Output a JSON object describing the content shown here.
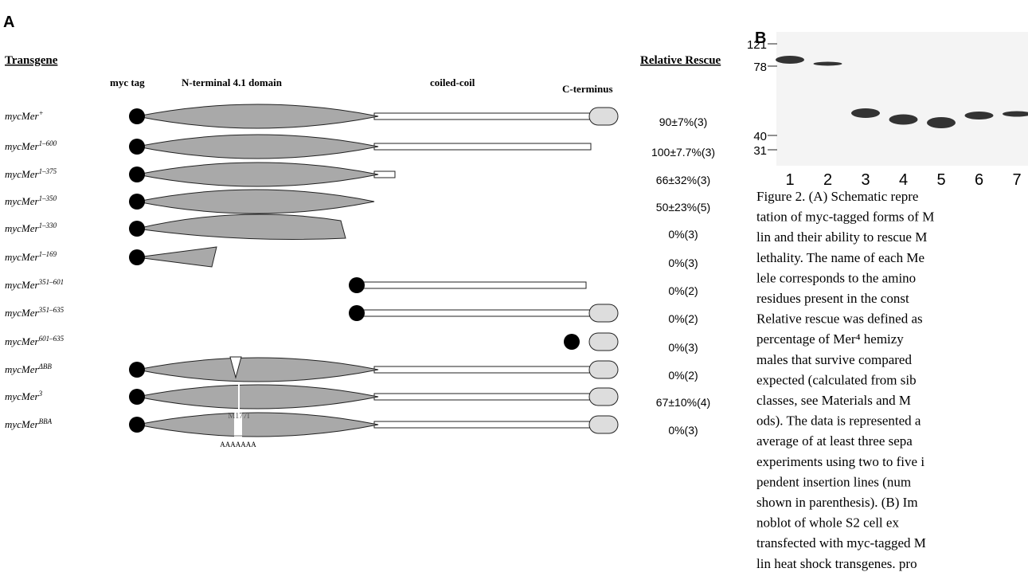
{
  "panel_a": {
    "label": "A",
    "header_transgene": "Transgene",
    "header_rescue": "Relative Rescue",
    "columns": [
      "myc tag",
      "N-terminal 4.1 domain",
      "coiled-coil",
      "C-terminus"
    ],
    "rows": [
      {
        "name": "mycMer",
        "sup": "+",
        "rescue": "90±7%(3)"
      },
      {
        "name": "mycMer",
        "sup": "1–600",
        "rescue": "100±7.7%(3)"
      },
      {
        "name": "mycMer",
        "sup": "1–375",
        "rescue": "66±32%(3)"
      },
      {
        "name": "mycMer",
        "sup": "1–350",
        "rescue": "50±23%(5)"
      },
      {
        "name": "mycMer",
        "sup": "1–330",
        "rescue": "0%(3)"
      },
      {
        "name": "mycMer",
        "sup": "1–169",
        "rescue": "0%(3)"
      },
      {
        "name": "mycMer",
        "sup": "351–601",
        "rescue": "0%(2)"
      },
      {
        "name": "mycMer",
        "sup": "351–635",
        "rescue": "0%(2)"
      },
      {
        "name": "mycMer",
        "sup": "601–635",
        "rescue": "0%(3)"
      },
      {
        "name": "mycMer",
        "sup": "ΔBB",
        "rescue": "0%(2)"
      },
      {
        "name": "mycMer",
        "sup": "3",
        "rescue": "67±10%(4)"
      },
      {
        "name": "mycMer",
        "sup": "BBA",
        "rescue": "0%(3)"
      }
    ],
    "annotations": [
      "M177I",
      "AAAAAAA"
    ]
  },
  "panel_b": {
    "label": "B",
    "markers": [
      "121",
      "78",
      "40",
      "31"
    ],
    "lanes": [
      "1",
      "2",
      "3",
      "4",
      "5",
      "6",
      "7"
    ]
  },
  "caption": [
    "Figure 2. (A) Schematic repre",
    "tation of myc-tagged forms of M",
    "lin and their ability to rescue M",
    "lethality. The name of each Me",
    "lele corresponds to the amino",
    "residues present in the const",
    "Relative rescue was defined as",
    "percentage of Mer⁴ hemizy",
    "males that survive compared",
    "expected (calculated from sib",
    "classes, see Materials and M",
    "ods). The data is represented a",
    "average of at least three sepa",
    "experiments using two to five i",
    "pendent insertion lines (num",
    "shown in parenthesis). (B) Im",
    "noblot of whole S2 cell ex",
    "transfected with myc-tagged M",
    "lin heat shock transgenes. pro"
  ]
}
